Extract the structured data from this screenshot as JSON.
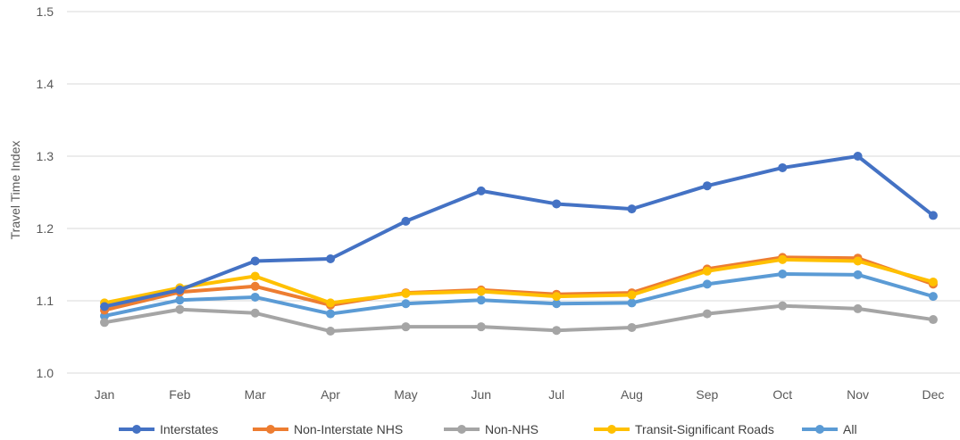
{
  "chart_data": {
    "type": "line",
    "title": "",
    "xlabel": "",
    "ylabel": "Travel Time Index",
    "ylim": [
      1.0,
      1.5
    ],
    "yticks": [
      "1.0",
      "1.1",
      "1.2",
      "1.3",
      "1.4",
      "1.5"
    ],
    "grid": true,
    "legend_position": "bottom",
    "categories": [
      "Jan",
      "Feb",
      "Mar",
      "Apr",
      "May",
      "Jun",
      "Jul",
      "Aug",
      "Sep",
      "Oct",
      "Nov",
      "Dec"
    ],
    "series": [
      {
        "name": "Interstates",
        "color": "#4472C4",
        "values": [
          1.092,
          1.115,
          1.155,
          1.158,
          1.21,
          1.252,
          1.234,
          1.227,
          1.259,
          1.284,
          1.3,
          1.218
        ]
      },
      {
        "name": "Non-Interstate NHS",
        "color": "#ED7D31",
        "values": [
          1.087,
          1.112,
          1.12,
          1.094,
          1.111,
          1.115,
          1.109,
          1.111,
          1.144,
          1.16,
          1.159,
          1.123
        ]
      },
      {
        "name": "Non-NHS",
        "color": "#A5A5A5",
        "values": [
          1.07,
          1.088,
          1.083,
          1.058,
          1.064,
          1.064,
          1.059,
          1.063,
          1.082,
          1.093,
          1.089,
          1.074
        ]
      },
      {
        "name": "Transit-Significant Roads",
        "color": "#FFC000",
        "values": [
          1.097,
          1.118,
          1.134,
          1.097,
          1.11,
          1.113,
          1.106,
          1.108,
          1.141,
          1.157,
          1.155,
          1.126
        ]
      },
      {
        "name": "All",
        "color": "#5B9BD5",
        "values": [
          1.079,
          1.101,
          1.105,
          1.082,
          1.096,
          1.101,
          1.096,
          1.097,
          1.123,
          1.137,
          1.136,
          1.106
        ]
      }
    ]
  }
}
